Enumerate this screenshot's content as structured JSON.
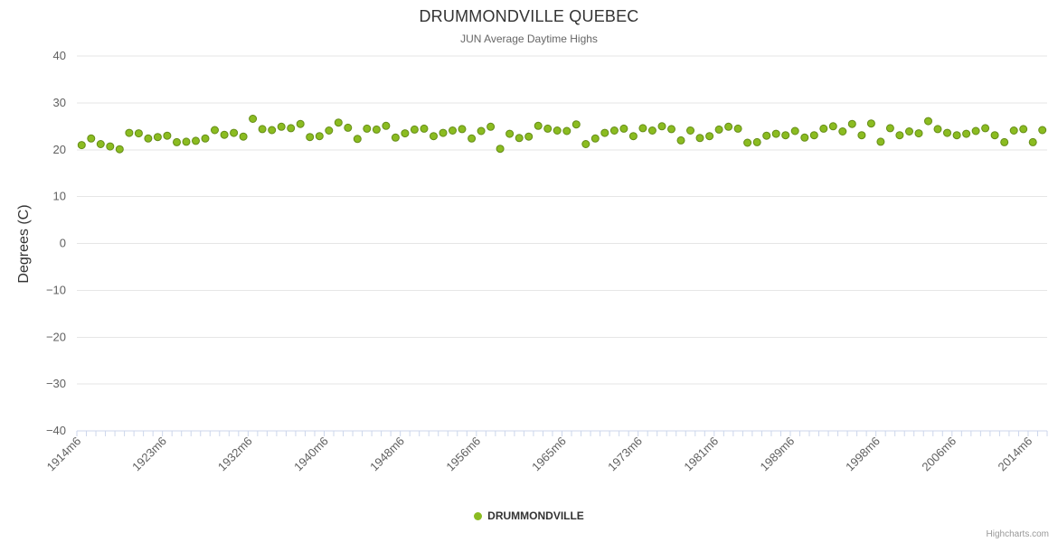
{
  "legend": {
    "label": "DRUMMONDVILLE"
  },
  "credits": {
    "label": "Highcharts.com"
  },
  "colors": {
    "point": "#8bbc21",
    "point_stroke": "#648c16",
    "grid": "#e6e6e6",
    "axis_line": "#ccd6eb",
    "tick": "#ccd6eb",
    "title": "#333333",
    "subtitle": "#666666",
    "axis_label": "#606060",
    "legend_text": "#333333",
    "credits": "#999999"
  },
  "chart_data": {
    "type": "scatter",
    "title": "DRUMMONDVILLE QUEBEC",
    "subtitle": "JUN Average Daytime Highs",
    "xlabel": "",
    "ylabel": "Degrees (C)",
    "ylim": [
      -40,
      40
    ],
    "y_tick_step": 10,
    "y_ticks": [
      40,
      30,
      20,
      10,
      0,
      -10,
      -20,
      -30,
      -40
    ],
    "grid": true,
    "legend_position": "bottom-center",
    "x_tick_labels": [
      "1914m6",
      "1923m6",
      "1932m6",
      "1940m6",
      "1948m6",
      "1956m6",
      "1965m6",
      "1973m6",
      "1981m6",
      "1989m6",
      "1998m6",
      "2006m6",
      "2014m6"
    ],
    "x_tick_years": [
      1914,
      1923,
      1932,
      1940,
      1948,
      1956,
      1965,
      1973,
      1981,
      1989,
      1998,
      2006,
      2014
    ],
    "series": [
      {
        "name": "DRUMMONDVILLE",
        "color": "#8bbc21",
        "start_year": 1914,
        "x_suffix": "m6",
        "values": [
          21.0,
          22.4,
          21.2,
          20.7,
          20.1,
          23.6,
          23.5,
          22.4,
          22.7,
          23.0,
          21.6,
          21.7,
          21.9,
          22.4,
          24.2,
          23.2,
          23.6,
          22.8,
          26.6,
          24.4,
          24.2,
          24.9,
          24.6,
          25.5,
          22.7,
          22.9,
          24.1,
          25.8,
          24.7,
          22.3,
          24.5,
          24.3,
          25.1,
          22.6,
          23.5,
          24.3,
          24.5,
          22.9,
          23.6,
          24.1,
          24.4,
          22.4,
          24.0,
          24.9,
          20.2,
          23.4,
          22.5,
          22.8,
          25.1,
          24.5,
          24.1,
          24.0,
          25.4,
          21.2,
          22.4,
          23.6,
          24.1,
          24.5,
          22.9,
          24.6,
          24.1,
          25.0,
          24.4,
          22.0,
          24.1,
          22.5,
          22.9,
          24.3,
          24.9,
          24.5,
          21.5,
          21.6,
          23.0,
          23.4,
          23.1,
          24.0,
          22.6,
          23.1,
          24.5,
          25.0,
          23.9,
          25.5,
          23.1,
          25.6,
          21.7,
          24.6,
          23.1,
          23.9,
          23.5,
          26.1,
          24.4,
          23.6,
          23.1,
          23.4,
          24.0,
          24.6,
          23.1,
          21.6,
          24.1,
          24.4,
          21.6,
          24.2
        ]
      }
    ]
  }
}
